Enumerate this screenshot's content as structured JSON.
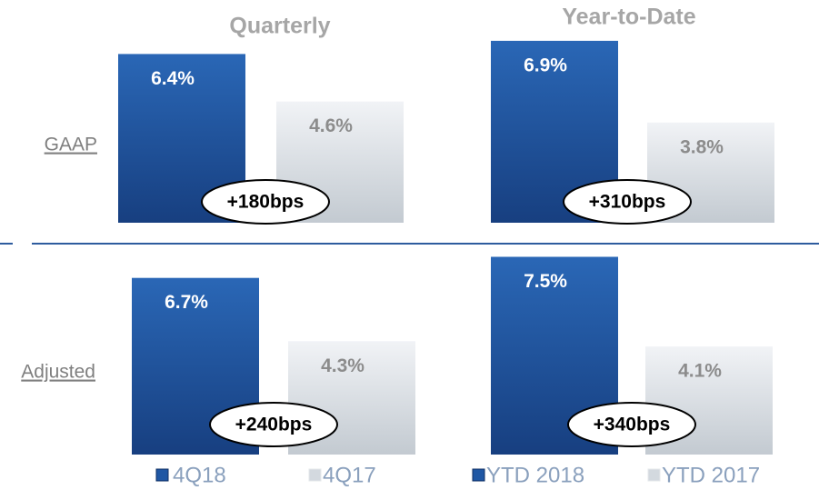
{
  "column_titles": [
    "Quarterly",
    "Year-to-Date"
  ],
  "row_labels": [
    "GAAP",
    "Adjusted"
  ],
  "legends": [
    [
      "4Q18",
      "4Q17"
    ],
    [
      "YTD 2018",
      "YTD 2017"
    ]
  ],
  "colors": [
    "#1f57a4",
    "#dde2e7"
  ],
  "chart_data": [
    {
      "type": "bar",
      "values": [
        6.4,
        4.6
      ],
      "value_labels": [
        "6.4%",
        "4.6%"
      ],
      "annotation": "+180bps",
      "ylim": [
        0,
        8
      ]
    },
    {
      "type": "bar",
      "values": [
        6.9,
        3.8
      ],
      "value_labels": [
        "6.9%",
        "3.8%"
      ],
      "annotation": "+310bps",
      "ylim": [
        0,
        8
      ]
    },
    {
      "type": "bar",
      "values": [
        6.7,
        4.3
      ],
      "value_labels": [
        "6.7%",
        "4.3%"
      ],
      "annotation": "+240bps",
      "ylim": [
        0,
        8
      ]
    },
    {
      "type": "bar",
      "values": [
        7.5,
        4.1
      ],
      "value_labels": [
        "7.5%",
        "4.1%"
      ],
      "annotation": "+340bps",
      "ylim": [
        0,
        8
      ]
    }
  ]
}
